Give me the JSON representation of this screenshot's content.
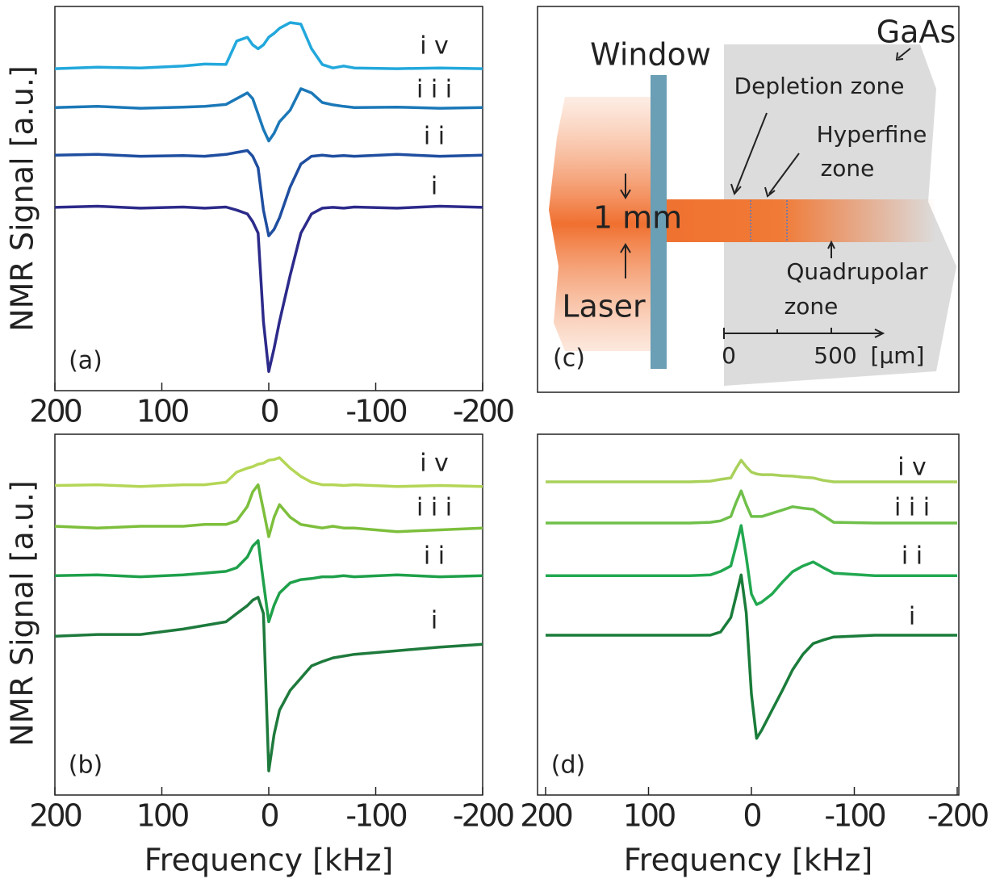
{
  "chart_data": [
    {
      "type": "line",
      "panel_label": "(a)",
      "ylabel": "NMR Signal [a.u.]",
      "x": [
        200,
        160,
        120,
        80,
        60,
        40,
        30,
        20,
        15,
        10,
        5,
        0,
        -5,
        -10,
        -20,
        -30,
        -40,
        -50,
        -60,
        -70,
        -80,
        -120,
        -160,
        -200
      ],
      "xlim": [
        200,
        -200
      ],
      "xticks": [
        200,
        100,
        0,
        -100,
        -200
      ],
      "ylim": [
        0,
        10
      ],
      "series": [
        {
          "name": "i",
          "color": "#2c2a8a",
          "values": [
            4.77,
            4.8,
            4.75,
            4.78,
            4.75,
            4.78,
            4.7,
            4.6,
            4.4,
            4.1,
            1.8,
            0.5,
            1.1,
            1.8,
            3.0,
            4.1,
            4.6,
            4.75,
            4.77,
            4.75,
            4.78,
            4.75,
            4.8,
            4.77
          ]
        },
        {
          "name": "i i",
          "color": "#1f4ea0",
          "values": [
            6.13,
            6.15,
            6.1,
            6.12,
            6.1,
            6.15,
            6.2,
            6.25,
            6.1,
            5.8,
            4.7,
            4.03,
            4.2,
            4.5,
            5.3,
            5.9,
            6.1,
            6.13,
            6.1,
            6.12,
            6.1,
            6.15,
            6.1,
            6.13
          ]
        },
        {
          "name": "i i i",
          "color": "#1b78b8",
          "values": [
            7.37,
            7.4,
            7.35,
            7.38,
            7.4,
            7.45,
            7.6,
            7.75,
            7.6,
            7.2,
            6.8,
            6.5,
            6.7,
            7.0,
            7.3,
            7.86,
            7.75,
            7.5,
            7.44,
            7.4,
            7.37,
            7.38,
            7.35,
            7.37
          ]
        },
        {
          "name": "i v",
          "color": "#22a8dc",
          "values": [
            8.38,
            8.42,
            8.4,
            8.45,
            8.5,
            8.49,
            9.1,
            9.2,
            9.0,
            8.9,
            9.0,
            9.2,
            9.3,
            9.43,
            9.58,
            9.54,
            8.9,
            8.49,
            8.4,
            8.45,
            8.4,
            8.38,
            8.4,
            8.38
          ]
        }
      ]
    },
    {
      "type": "line",
      "panel_label": "(b)",
      "ylabel": "NMR Signal [a.u.]",
      "xlabel": "Frequency [kHz]",
      "x": [
        200,
        160,
        120,
        80,
        60,
        40,
        30,
        20,
        15,
        10,
        5,
        0,
        -5,
        -10,
        -20,
        -30,
        -40,
        -50,
        -60,
        -70,
        -80,
        -120,
        -160,
        -200
      ],
      "xlim": [
        200,
        -200
      ],
      "xticks": [
        200,
        100,
        0,
        -100,
        -200
      ],
      "ylim": [
        0,
        10
      ],
      "series": [
        {
          "name": "i",
          "color": "#1e7a3c",
          "values": [
            4.4,
            4.45,
            4.45,
            4.6,
            4.7,
            4.8,
            5.03,
            5.25,
            5.4,
            5.48,
            5.03,
            0.67,
            1.68,
            2.35,
            2.9,
            3.24,
            3.58,
            3.7,
            3.8,
            3.85,
            3.9,
            4.0,
            4.1,
            4.18
          ]
        },
        {
          "name": "i i",
          "color": "#1fa04a",
          "values": [
            6.08,
            6.1,
            6.05,
            6.1,
            6.15,
            6.2,
            6.3,
            6.6,
            6.9,
            7.05,
            5.9,
            4.8,
            5.26,
            5.6,
            5.88,
            5.97,
            6.0,
            6.05,
            6.05,
            6.08,
            6.05,
            6.1,
            6.05,
            6.08
          ]
        },
        {
          "name": "i i i",
          "color": "#7dbf3c",
          "values": [
            7.45,
            7.4,
            7.45,
            7.45,
            7.5,
            7.5,
            7.6,
            8.0,
            8.4,
            8.6,
            7.9,
            7.16,
            7.7,
            8.05,
            7.7,
            7.5,
            7.45,
            7.4,
            7.45,
            7.4,
            7.4,
            7.3,
            7.35,
            7.4
          ]
        },
        {
          "name": "i v",
          "color": "#b4d656",
          "values": [
            8.58,
            8.6,
            8.55,
            8.6,
            8.6,
            8.67,
            8.95,
            9.06,
            9.1,
            9.17,
            9.2,
            9.28,
            9.3,
            9.35,
            9.06,
            8.83,
            8.67,
            8.6,
            8.6,
            8.58,
            8.6,
            8.55,
            8.58,
            8.55
          ]
        }
      ]
    },
    {
      "type": "line",
      "panel_label": "(d)",
      "xlabel": "Frequency [kHz]",
      "x": [
        200,
        160,
        120,
        80,
        60,
        40,
        30,
        20,
        15,
        10,
        5,
        0,
        -5,
        -10,
        -20,
        -30,
        -40,
        -50,
        -60,
        -70,
        -80,
        -120,
        -160,
        -200
      ],
      "xlim": [
        200,
        -200
      ],
      "xticks": [
        200,
        100,
        0,
        -100,
        -200
      ],
      "ylim": [
        0,
        10
      ],
      "series": [
        {
          "name": "i",
          "color": "#1a7c3a",
          "values": [
            4.43,
            4.43,
            4.43,
            4.43,
            4.43,
            4.43,
            4.52,
            4.92,
            5.5,
            6.1,
            5.05,
            2.8,
            1.57,
            1.8,
            2.35,
            2.9,
            3.47,
            3.9,
            4.2,
            4.3,
            4.38,
            4.43,
            4.43,
            4.43
          ]
        },
        {
          "name": "i i",
          "color": "#22a850",
          "values": [
            6.08,
            6.08,
            6.08,
            6.08,
            6.08,
            6.1,
            6.2,
            6.35,
            6.9,
            7.47,
            6.6,
            5.57,
            5.28,
            5.35,
            5.57,
            5.9,
            6.19,
            6.35,
            6.46,
            6.3,
            6.15,
            6.08,
            6.08,
            6.08
          ]
        },
        {
          "name": "i i i",
          "color": "#6fc04a",
          "values": [
            7.54,
            7.54,
            7.54,
            7.54,
            7.54,
            7.56,
            7.6,
            7.72,
            8.1,
            8.43,
            8.05,
            7.72,
            7.72,
            7.72,
            7.81,
            7.9,
            7.99,
            7.95,
            7.92,
            7.74,
            7.56,
            7.54,
            7.54,
            7.54
          ]
        },
        {
          "name": "i v",
          "color": "#a9d15a",
          "values": [
            8.68,
            8.68,
            8.68,
            8.68,
            8.68,
            8.7,
            8.75,
            8.79,
            9.05,
            9.28,
            9.1,
            8.95,
            8.9,
            8.88,
            8.88,
            8.85,
            8.84,
            8.81,
            8.79,
            8.72,
            8.68,
            8.68,
            8.68,
            8.68
          ]
        }
      ]
    }
  ],
  "diagram": {
    "panel_label": "(c)",
    "material": "GaAs",
    "window": "Window",
    "depletion_zone": "Depletion zone",
    "hyperfine_zone": [
      "Hyperfine",
      "zone"
    ],
    "quadrupolar_zone": [
      "Quadrupolar",
      "zone"
    ],
    "beam_width": "1 mm",
    "laser": "Laser",
    "scale": [
      "0",
      "500",
      "[µm]"
    ]
  }
}
